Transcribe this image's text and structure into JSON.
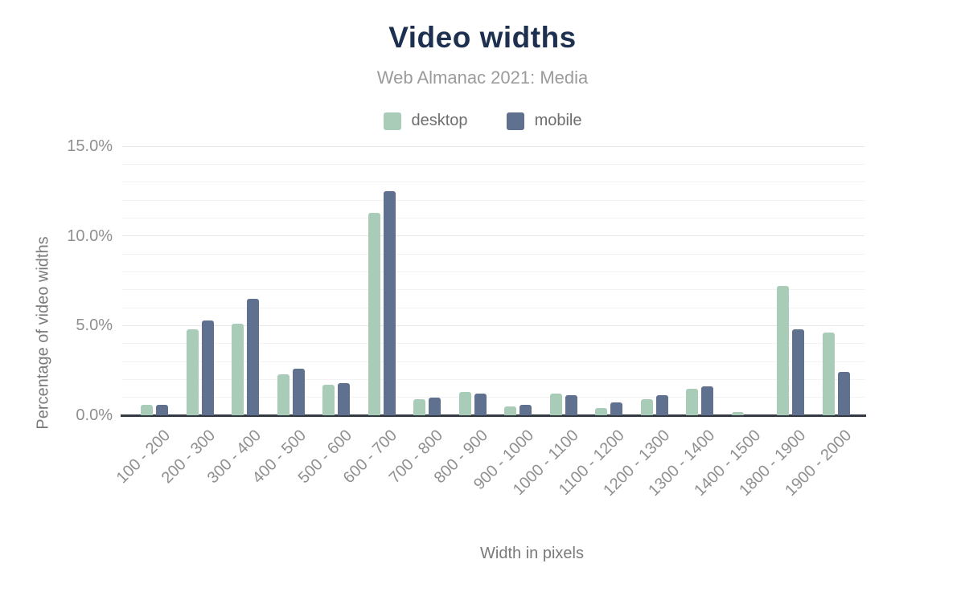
{
  "chart": {
    "title": "Video widths",
    "subtitle": "Web Almanac 2021: Media",
    "y_axis_title": "Percentage of video widths",
    "x_axis_title": "Width in pixels"
  },
  "chart_data": {
    "type": "bar",
    "title": "Video widths",
    "subtitle": "Web Almanac 2021: Media",
    "xlabel": "Width in pixels",
    "ylabel": "Percentage of video widths",
    "ylim": [
      0,
      15
    ],
    "grid": "horizontal, minor line every 1%, major every 5%",
    "legend_position": "top",
    "y_ticks": [
      {
        "value": 0,
        "label": "0.0%"
      },
      {
        "value": 5,
        "label": "5.0%"
      },
      {
        "value": 10,
        "label": "10.0%"
      },
      {
        "value": 15,
        "label": "15.0%"
      }
    ],
    "categories": [
      "100 - 200",
      "200 - 300",
      "300 - 400",
      "400 - 500",
      "500 - 600",
      "600 - 700",
      "700 - 800",
      "800 - 900",
      "900 - 1000",
      "1000 - 1100",
      "1100 - 1200",
      "1200 - 1300",
      "1300 - 1400",
      "1400 - 1500",
      "1800 - 1900",
      "1900 - 2000"
    ],
    "series": [
      {
        "name": "desktop",
        "color": "#a9ccb9",
        "values": [
          0.6,
          4.8,
          5.1,
          2.3,
          1.7,
          11.3,
          0.9,
          1.3,
          0.5,
          1.2,
          0.4,
          0.9,
          1.5,
          0.2,
          7.2,
          4.6
        ]
      },
      {
        "name": "mobile",
        "color": "#5f718f",
        "values": [
          0.6,
          5.3,
          6.5,
          2.6,
          1.8,
          12.5,
          1.0,
          1.2,
          0.6,
          1.1,
          0.7,
          1.1,
          1.6,
          0.0,
          4.8,
          2.4
        ]
      }
    ]
  },
  "colors": {
    "title": "#1e3050",
    "subtitle": "#9b9b9b",
    "tick_label": "#8f8f8f",
    "axis_title": "#7a7a7a",
    "axis_line": "#333940",
    "desktop": "#a9ccb9",
    "mobile": "#5f718f"
  }
}
